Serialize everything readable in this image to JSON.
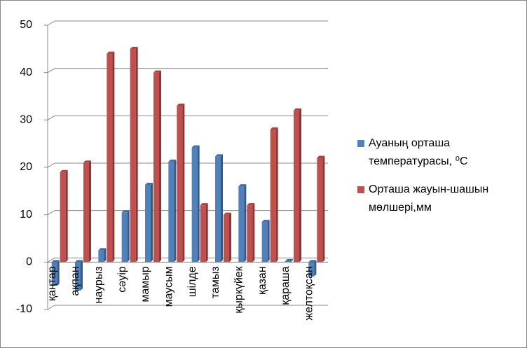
{
  "chart_data": {
    "type": "bar",
    "categories": [
      "қаңтар",
      "ақпан",
      "наурыз",
      "сәуір",
      "мамыр",
      "маусым",
      "шілде",
      "тамыз",
      "қыркүйек",
      "қазан",
      "қараша",
      "желтоқсан"
    ],
    "series": [
      {
        "name": "Ауаның орташа температурасы, ⁰С",
        "color": "#4f81bd",
        "values": [
          -5,
          -6,
          2.5,
          10.5,
          16.3,
          21.2,
          24.2,
          22.3,
          16,
          8.5,
          0.2,
          -3
        ]
      },
      {
        "name": "Орташа жауын-шашын мөлшері,мм",
        "color": "#c0504d",
        "values": [
          19,
          21,
          44,
          45,
          40,
          33,
          12,
          10,
          12,
          28,
          32,
          22
        ]
      }
    ],
    "ylim": [
      -10,
      50
    ],
    "yticks": [
      -10,
      0,
      10,
      20,
      30,
      40,
      50
    ],
    "grid": true,
    "legend": "right"
  }
}
